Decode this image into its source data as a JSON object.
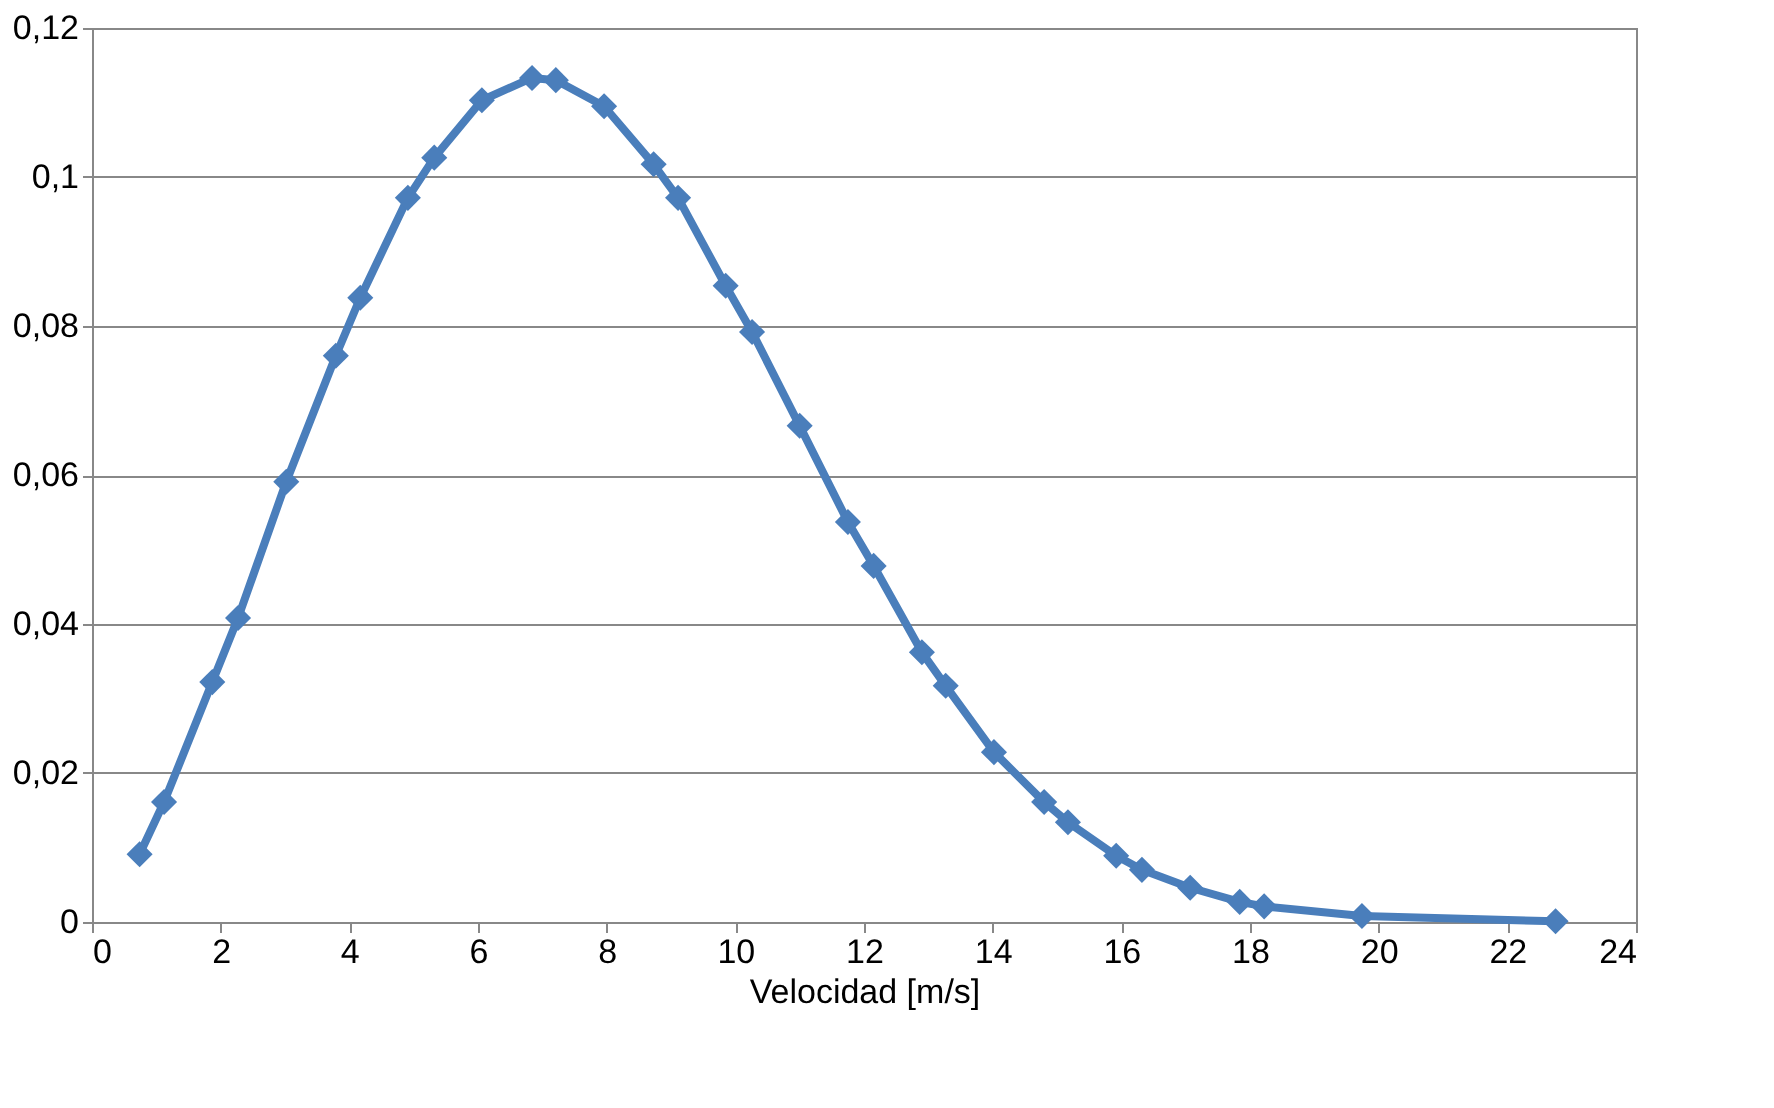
{
  "chart_data": {
    "type": "line",
    "xlabel": "Velocidad [m/s]",
    "xlim": [
      0,
      24
    ],
    "xticks": [
      0,
      2,
      4,
      6,
      8,
      10,
      12,
      14,
      16,
      18,
      20,
      22,
      24
    ],
    "ylim": [
      0,
      0.12
    ],
    "yticks": [
      {
        "value": 0,
        "label": "0"
      },
      {
        "value": 0.02,
        "label": "0,02"
      },
      {
        "value": 0.04,
        "label": "0,04"
      },
      {
        "value": 0.06,
        "label": "0,06"
      },
      {
        "value": 0.08,
        "label": "0,08"
      },
      {
        "value": 0.1,
        "label": "0,1"
      },
      {
        "value": 0.12,
        "label": "0,12"
      }
    ],
    "grid": "y",
    "marker": "diamond",
    "line_style": "solid",
    "x": [
      0.74,
      1.12,
      1.87,
      2.27,
      3.02,
      3.79,
      4.17,
      4.91,
      5.32,
      6.06,
      6.84,
      7.21,
      7.96,
      8.73,
      9.11,
      9.85,
      10.26,
      11.0,
      11.75,
      12.15,
      12.9,
      13.27,
      14.02,
      14.8,
      15.17,
      15.92,
      16.32,
      17.07,
      17.84,
      18.22,
      19.74,
      22.75
    ],
    "series": [
      {
        "color": "#4a7ebb",
        "values": [
          0.0091,
          0.0161,
          0.0322,
          0.0408,
          0.0591,
          0.076,
          0.0838,
          0.0972,
          0.1026,
          0.1103,
          0.1133,
          0.113,
          0.1095,
          0.1017,
          0.0972,
          0.0854,
          0.0792,
          0.0666,
          0.0537,
          0.0478,
          0.0362,
          0.0317,
          0.0228,
          0.0161,
          0.0134,
          0.0089,
          0.007,
          0.0046,
          0.0027,
          0.0021,
          0.0008,
          0.0001
        ]
      }
    ]
  }
}
